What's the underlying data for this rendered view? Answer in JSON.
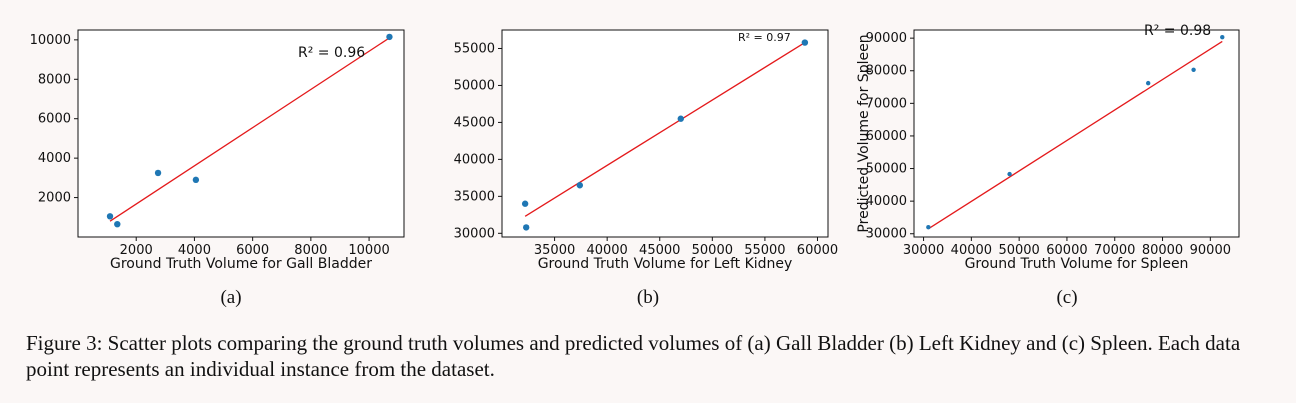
{
  "chart_data": [
    {
      "type": "scatter",
      "xlabel": "Ground Truth Volume for Gall Bladder",
      "ylabel": "",
      "xlim": [
        0,
        11200
      ],
      "ylim": [
        0,
        10500
      ],
      "xticks": [
        2000,
        4000,
        6000,
        8000,
        10000
      ],
      "yticks": [
        2000,
        4000,
        6000,
        8000,
        10000
      ],
      "x": [
        1100,
        1350,
        2750,
        4050,
        10700
      ],
      "y": [
        1050,
        650,
        3250,
        2900,
        10150
      ],
      "fit_line": [
        [
          1100,
          800
        ],
        [
          10700,
          10100
        ]
      ],
      "annotation": "R² = 0.96",
      "point_color": "#1f77b4",
      "line_color": "#e41a1c",
      "grid": false,
      "sublabel": "(a)"
    },
    {
      "type": "scatter",
      "xlabel": "Ground Truth Volume for Left Kidney",
      "ylabel": "",
      "xlim": [
        30000,
        61000
      ],
      "ylim": [
        29500,
        57500
      ],
      "xticks": [
        35000,
        40000,
        45000,
        50000,
        55000,
        60000
      ],
      "yticks": [
        30000,
        35000,
        40000,
        45000,
        50000,
        55000
      ],
      "x": [
        32200,
        32300,
        37400,
        47000,
        58800
      ],
      "y": [
        34000,
        30800,
        36500,
        45500,
        55800
      ],
      "fit_line": [
        [
          32200,
          32300
        ],
        [
          58800,
          55800
        ]
      ],
      "annotation": "R² = 0.97",
      "point_color": "#1f77b4",
      "line_color": "#e41a1c",
      "grid": false,
      "sublabel": "(b)"
    },
    {
      "type": "scatter",
      "xlabel": "Ground Truth Volume for Spleen",
      "ylabel": "Predicted Volume for Spleen",
      "xlim": [
        28000,
        96000
      ],
      "ylim": [
        29000,
        92500
      ],
      "xticks": [
        30000,
        40000,
        50000,
        60000,
        70000,
        80000,
        90000
      ],
      "yticks": [
        30000,
        40000,
        50000,
        60000,
        70000,
        80000,
        90000
      ],
      "x": [
        31000,
        48000,
        77000,
        86500,
        92500
      ],
      "y": [
        32000,
        48300,
        76200,
        80300,
        90300
      ],
      "fit_line": [
        [
          31000,
          31500
        ],
        [
          92500,
          89000
        ]
      ],
      "annotation": "R² = 0.98",
      "point_color": "#1f77b4",
      "line_color": "#e41a1c",
      "grid": false,
      "sublabel": "(c)"
    }
  ],
  "caption": "Figure 3: Scatter plots comparing the ground truth volumes and predicted volumes of (a) Gall Bladder (b) Left Kidney and (c) Spleen. Each data point represents an individual instance from the dataset."
}
